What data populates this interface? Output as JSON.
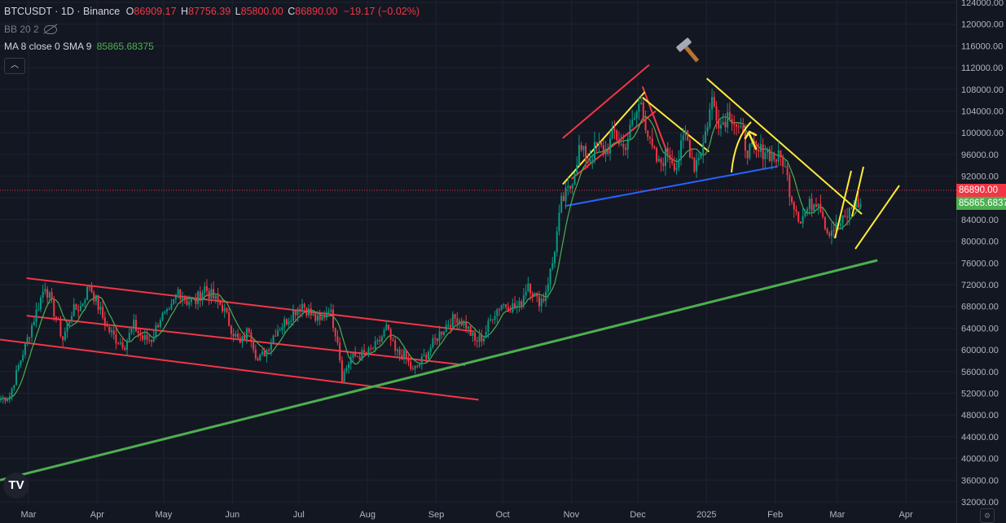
{
  "header": {
    "symbol": "BTCUSDT · 1D · Binance",
    "o_label": "O",
    "o_value": "86909.17",
    "h_label": "H",
    "h_value": "87756.39",
    "l_label": "L",
    "l_value": "85800.00",
    "c_label": "C",
    "c_value": "86890.00",
    "change": "−19.17 (−0.02%)"
  },
  "indicators": {
    "bb_label": "BB 20 2",
    "ma_label": "MA 8 close 0 SMA 9",
    "ma_value": "85865.68375"
  },
  "tags": {
    "last_price": "86890.00",
    "ma_price": "85865.6837"
  },
  "icons": {
    "logo": "TV",
    "collapse": "︿",
    "settings": "⚙"
  },
  "colors": {
    "background": "#131722",
    "up_candle": "#089981",
    "down_candle": "#f23645",
    "ma_line": "#4caf50",
    "channel_red": "#f23645",
    "trend_yellow": "#ffeb3b",
    "trend_blue": "#2962ff",
    "support_green": "#4caf50"
  },
  "chart_data": {
    "type": "candlestick",
    "symbol": "BTCUSDT",
    "interval": "1D",
    "exchange": "Binance",
    "price_axis": {
      "ticks": [
        "36000.00",
        "40000.00",
        "44000.00",
        "48000.00",
        "52000.00",
        "56000.00",
        "60000.00",
        "64000.00",
        "68000.00",
        "72000.00",
        "76000.00",
        "80000.00",
        "84000.00",
        "88000.00",
        "92000.00",
        "96000.00",
        "100000.00",
        "104000.00",
        "108000.00",
        "112000.00",
        "116000.00",
        "120000.00",
        "124000.00",
        "32000.00"
      ],
      "range": [
        32000,
        124000
      ]
    },
    "time_axis": {
      "ticks": [
        "Mar",
        "Apr",
        "May",
        "Jun",
        "Jul",
        "Aug",
        "Sep",
        "Oct",
        "Nov",
        "Dec",
        "2025",
        "Feb",
        "Mar",
        "Apr"
      ],
      "tick_days": [
        0,
        31,
        61,
        92,
        122,
        153,
        184,
        214,
        245,
        275,
        306,
        337,
        365,
        396
      ]
    },
    "grid": true,
    "last_close": 86890.0,
    "ma_last": 85865.68375,
    "anchors": [
      [
        0,
        51000
      ],
      [
        4,
        51500
      ],
      [
        8,
        57000
      ],
      [
        12,
        62000
      ],
      [
        16,
        67000
      ],
      [
        20,
        72000
      ],
      [
        24,
        67000
      ],
      [
        28,
        62000
      ],
      [
        32,
        67000
      ],
      [
        36,
        68000
      ],
      [
        40,
        72000
      ],
      [
        44,
        68000
      ],
      [
        48,
        64000
      ],
      [
        52,
        62000
      ],
      [
        56,
        61000
      ],
      [
        60,
        64500
      ],
      [
        64,
        62000
      ],
      [
        68,
        62000
      ],
      [
        72,
        66000
      ],
      [
        76,
        66500
      ],
      [
        80,
        71000
      ],
      [
        84,
        69000
      ],
      [
        88,
        69000
      ],
      [
        92,
        71500
      ],
      [
        96,
        69500
      ],
      [
        100,
        68000
      ],
      [
        104,
        64000
      ],
      [
        108,
        61000
      ],
      [
        112,
        64000
      ],
      [
        116,
        58000
      ],
      [
        120,
        60000
      ],
      [
        124,
        63500
      ],
      [
        128,
        65000
      ],
      [
        132,
        67000
      ],
      [
        136,
        68500
      ],
      [
        140,
        66500
      ],
      [
        144,
        65000
      ],
      [
        148,
        68000
      ],
      [
        152,
        62000
      ],
      [
        154,
        55000
      ],
      [
        158,
        58500
      ],
      [
        162,
        59000
      ],
      [
        166,
        59500
      ],
      [
        170,
        61000
      ],
      [
        174,
        64000
      ],
      [
        178,
        59500
      ],
      [
        182,
        59000
      ],
      [
        186,
        56000
      ],
      [
        190,
        58000
      ],
      [
        194,
        60500
      ],
      [
        198,
        63000
      ],
      [
        202,
        65000
      ],
      [
        206,
        66000
      ],
      [
        210,
        64500
      ],
      [
        214,
        61500
      ],
      [
        218,
        62500
      ],
      [
        222,
        66500
      ],
      [
        226,
        68500
      ],
      [
        230,
        68000
      ],
      [
        234,
        68000
      ],
      [
        238,
        72500
      ],
      [
        242,
        69000
      ],
      [
        245,
        69500
      ],
      [
        249,
        76000
      ],
      [
        253,
        87000
      ],
      [
        257,
        90000
      ],
      [
        261,
        97000
      ],
      [
        265,
        95000
      ],
      [
        269,
        97500
      ],
      [
        273,
        96500
      ],
      [
        277,
        100000
      ],
      [
        281,
        97000
      ],
      [
        285,
        101500
      ],
      [
        289,
        106000
      ],
      [
        293,
        97500
      ],
      [
        297,
        94000
      ],
      [
        301,
        96500
      ],
      [
        305,
        94000
      ],
      [
        309,
        100000
      ],
      [
        313,
        94000
      ],
      [
        317,
        98000
      ],
      [
        321,
        106000
      ],
      [
        325,
        101500
      ],
      [
        329,
        104000
      ],
      [
        333,
        100500
      ],
      [
        337,
        97000
      ],
      [
        341,
        96000
      ],
      [
        345,
        97000
      ],
      [
        349,
        95500
      ],
      [
        353,
        95000
      ],
      [
        357,
        88000
      ],
      [
        361,
        84000
      ],
      [
        365,
        86500
      ],
      [
        369,
        88000
      ],
      [
        373,
        82000
      ],
      [
        377,
        82500
      ],
      [
        381,
        84000
      ],
      [
        385,
        87000
      ],
      [
        388,
        86890
      ]
    ],
    "annotations": [
      {
        "type": "channel",
        "color": "red",
        "points": [
          [
            12,
            73200
          ],
          [
            214,
            63400
          ]
        ]
      },
      {
        "type": "channel",
        "color": "red",
        "points": [
          [
            12,
            66300
          ],
          [
            210,
            57200
          ]
        ]
      },
      {
        "type": "channel",
        "color": "red",
        "points": [
          [
            0,
            61900
          ],
          [
            216,
            50800
          ]
        ]
      },
      {
        "type": "channel",
        "color": "red",
        "points": [
          [
            254,
            99000
          ],
          [
            293,
            112500
          ]
        ]
      },
      {
        "type": "channel",
        "color": "red",
        "points": [
          [
            258,
            91500
          ],
          [
            296,
            104000
          ]
        ]
      },
      {
        "type": "channel",
        "color": "red",
        "points": [
          [
            290,
            108500
          ],
          [
            301,
            96500
          ]
        ]
      },
      {
        "type": "trendline",
        "color": "yellow",
        "points": [
          [
            254,
            90500
          ],
          [
            291,
            107500
          ]
        ]
      },
      {
        "type": "trendline",
        "color": "yellow",
        "points": [
          [
            290,
            106500
          ],
          [
            320,
            96500
          ]
        ]
      },
      {
        "type": "trendline",
        "color": "yellow",
        "points": [
          [
            319,
            110000
          ],
          [
            389,
            85000
          ]
        ]
      },
      {
        "type": "trendline",
        "color": "blue",
        "points": [
          [
            255,
            86500
          ],
          [
            351,
            93800
          ]
        ]
      },
      {
        "type": "trendline",
        "color": "green",
        "points": [
          [
            0,
            36000
          ],
          [
            396,
            76500
          ]
        ]
      }
    ]
  }
}
